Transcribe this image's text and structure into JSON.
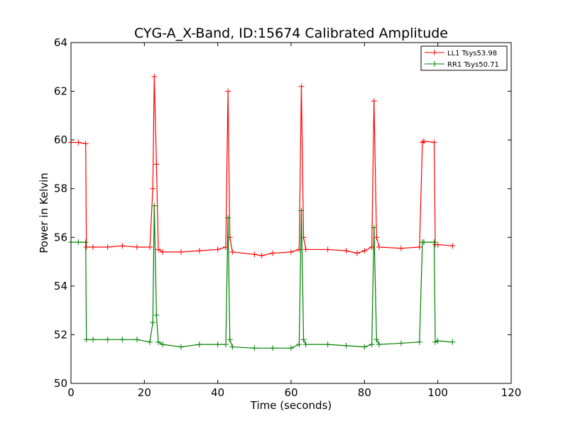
{
  "chart_data": {
    "type": "line",
    "title": "CYG-A_X-Band, ID:15674 Calibrated Amplitude",
    "xlabel": "Time (seconds)",
    "ylabel": "Power in Kelvin",
    "xlim": [
      0,
      120
    ],
    "ylim": [
      50,
      64
    ],
    "x_ticks": [
      0,
      20,
      40,
      60,
      80,
      100,
      120
    ],
    "y_ticks": [
      50,
      52,
      54,
      56,
      58,
      60,
      62,
      64
    ],
    "x_tick_labels": [
      "0",
      "20",
      "40",
      "60",
      "80",
      "100",
      "120"
    ],
    "y_tick_labels": [
      "50",
      "52",
      "54",
      "56",
      "58",
      "60",
      "62",
      "64"
    ],
    "grid": false,
    "legend_position": "top-right",
    "marker": "plus",
    "series": [
      {
        "name": "LL1 Tsys53.98",
        "color": "#ff0000",
        "x": [
          0,
          2,
          4,
          4.2,
          6,
          10,
          14,
          18,
          21.5,
          22.3,
          22.7,
          23.3,
          23.8,
          25,
          30,
          35,
          40,
          42.2,
          42.8,
          43.3,
          44,
          50,
          52,
          55,
          60,
          62.2,
          62.8,
          63.4,
          64,
          70,
          75,
          78,
          80,
          82,
          82.6,
          83.3,
          84,
          90,
          95,
          95.8,
          96.2,
          99,
          99.3,
          100,
          104
        ],
        "y": [
          59.9,
          59.9,
          59.85,
          55.6,
          55.6,
          55.6,
          55.65,
          55.6,
          55.6,
          58.0,
          62.6,
          59.0,
          55.5,
          55.4,
          55.4,
          55.45,
          55.5,
          55.6,
          62.0,
          56.0,
          55.4,
          55.3,
          55.25,
          55.35,
          55.4,
          55.5,
          62.2,
          56.0,
          55.5,
          55.5,
          55.45,
          55.35,
          55.45,
          55.6,
          61.6,
          56.0,
          55.6,
          55.55,
          55.6,
          59.9,
          59.95,
          59.9,
          55.7,
          55.7,
          55.65
        ]
      },
      {
        "name": "RR1 Tsys50.71",
        "color": "#008000",
        "x": [
          0,
          2,
          4,
          4.2,
          6,
          10,
          14,
          18,
          21.5,
          22.3,
          22.7,
          23.3,
          23.8,
          25,
          30,
          35,
          40,
          42.2,
          42.8,
          43.3,
          44,
          50,
          55,
          60,
          62.2,
          62.8,
          63.4,
          64,
          70,
          75,
          80,
          82,
          82.6,
          83.3,
          84,
          90,
          95,
          95.8,
          96.2,
          99,
          99.3,
          100,
          104
        ],
        "y": [
          55.8,
          55.8,
          55.8,
          51.8,
          51.8,
          51.8,
          51.8,
          51.8,
          51.7,
          52.5,
          57.3,
          52.8,
          51.7,
          51.6,
          51.5,
          51.6,
          51.6,
          51.6,
          56.8,
          51.8,
          51.5,
          51.45,
          51.45,
          51.45,
          51.6,
          57.1,
          51.8,
          51.6,
          51.6,
          51.55,
          51.5,
          51.6,
          56.4,
          51.8,
          51.6,
          51.65,
          51.7,
          55.8,
          55.8,
          55.8,
          51.7,
          51.75,
          51.7
        ]
      }
    ]
  }
}
